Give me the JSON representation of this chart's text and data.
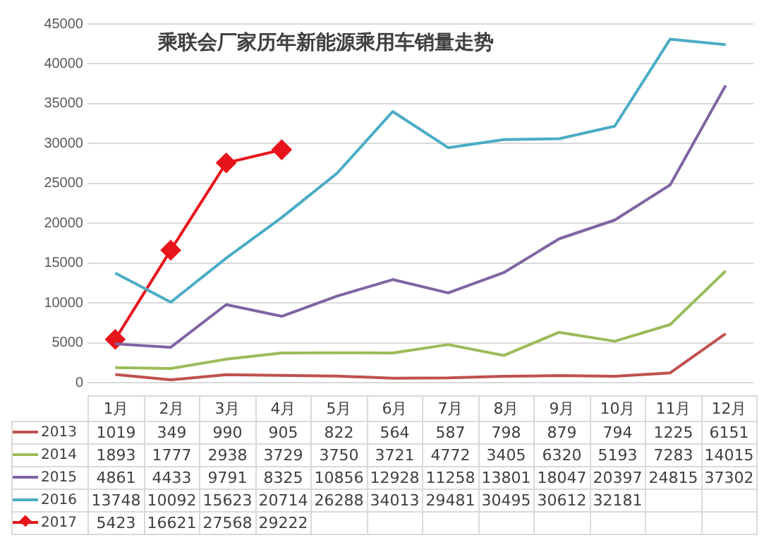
{
  "chart_data": {
    "type": "line",
    "title": "乘联会厂家历年新能源乘用车销量走势",
    "categories": [
      "1月",
      "2月",
      "3月",
      "4月",
      "5月",
      "6月",
      "7月",
      "8月",
      "9月",
      "10月",
      "11月",
      "12月"
    ],
    "series": [
      {
        "name": "2013",
        "color": "#c0504d",
        "values": [
          1019,
          349,
          990,
          905,
          822,
          564,
          587,
          798,
          879,
          794,
          1225,
          6151
        ]
      },
      {
        "name": "2014",
        "color": "#9bbb59",
        "values": [
          1893,
          1777,
          2938,
          3729,
          3750,
          3721,
          4772,
          3405,
          6320,
          5193,
          7283,
          14015
        ]
      },
      {
        "name": "2015",
        "color": "#8064a2",
        "values": [
          4861,
          4433,
          9791,
          8325,
          10856,
          12928,
          11258,
          13801,
          18047,
          20397,
          24815,
          37302
        ]
      },
      {
        "name": "2016",
        "color": "#4bacc6",
        "values": [
          13748,
          10092,
          15623,
          20714,
          26288,
          34013,
          29481,
          30495,
          30612,
          32181,
          43100,
          42400
        ],
        "value_labels": [
          "13748",
          "10092",
          "15623",
          "20714",
          "26288",
          "34013",
          "29481",
          "30495",
          "30612",
          "32181",
          null,
          null
        ]
      },
      {
        "name": "2017",
        "color": "#e8141b",
        "marker": "diamond",
        "values": [
          5423,
          16621,
          27568,
          29222,
          null,
          null,
          null,
          null,
          null,
          null,
          null,
          null
        ]
      }
    ],
    "ylim": [
      0,
      45000
    ],
    "yticks": [
      0,
      5000,
      10000,
      15000,
      20000,
      25000,
      30000,
      35000,
      40000,
      45000
    ],
    "grid": "y",
    "legend": "bottom",
    "data_labels": true,
    "marker": "none",
    "line_style": "solid"
  }
}
